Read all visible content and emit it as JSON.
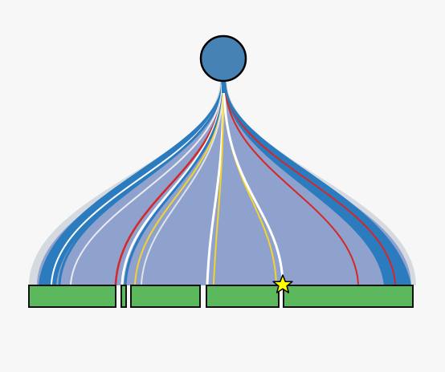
{
  "colors": {
    "background": "#f7f7f7",
    "root_fill": "#4682b4",
    "root_stroke": "#000000",
    "bin_fill": "#5cb85c",
    "bin_stroke": "#111111",
    "fan_fill": "#8fa2cd",
    "fan_edge": "#cfd3db",
    "blue_line": "#2b7bbf",
    "red_line": "#d62728",
    "yellow_line": "#f2d32f",
    "white_line": "#ffffff",
    "star_fill": "#ffff00",
    "star_stroke": "#000000"
  },
  "icons": {
    "root": "circle-node-icon",
    "marker": "star-icon"
  },
  "bins": [
    {
      "id": "bin-1"
    },
    {
      "id": "bin-2"
    },
    {
      "id": "bin-3"
    },
    {
      "id": "bin-4"
    },
    {
      "id": "bin-5"
    }
  ]
}
